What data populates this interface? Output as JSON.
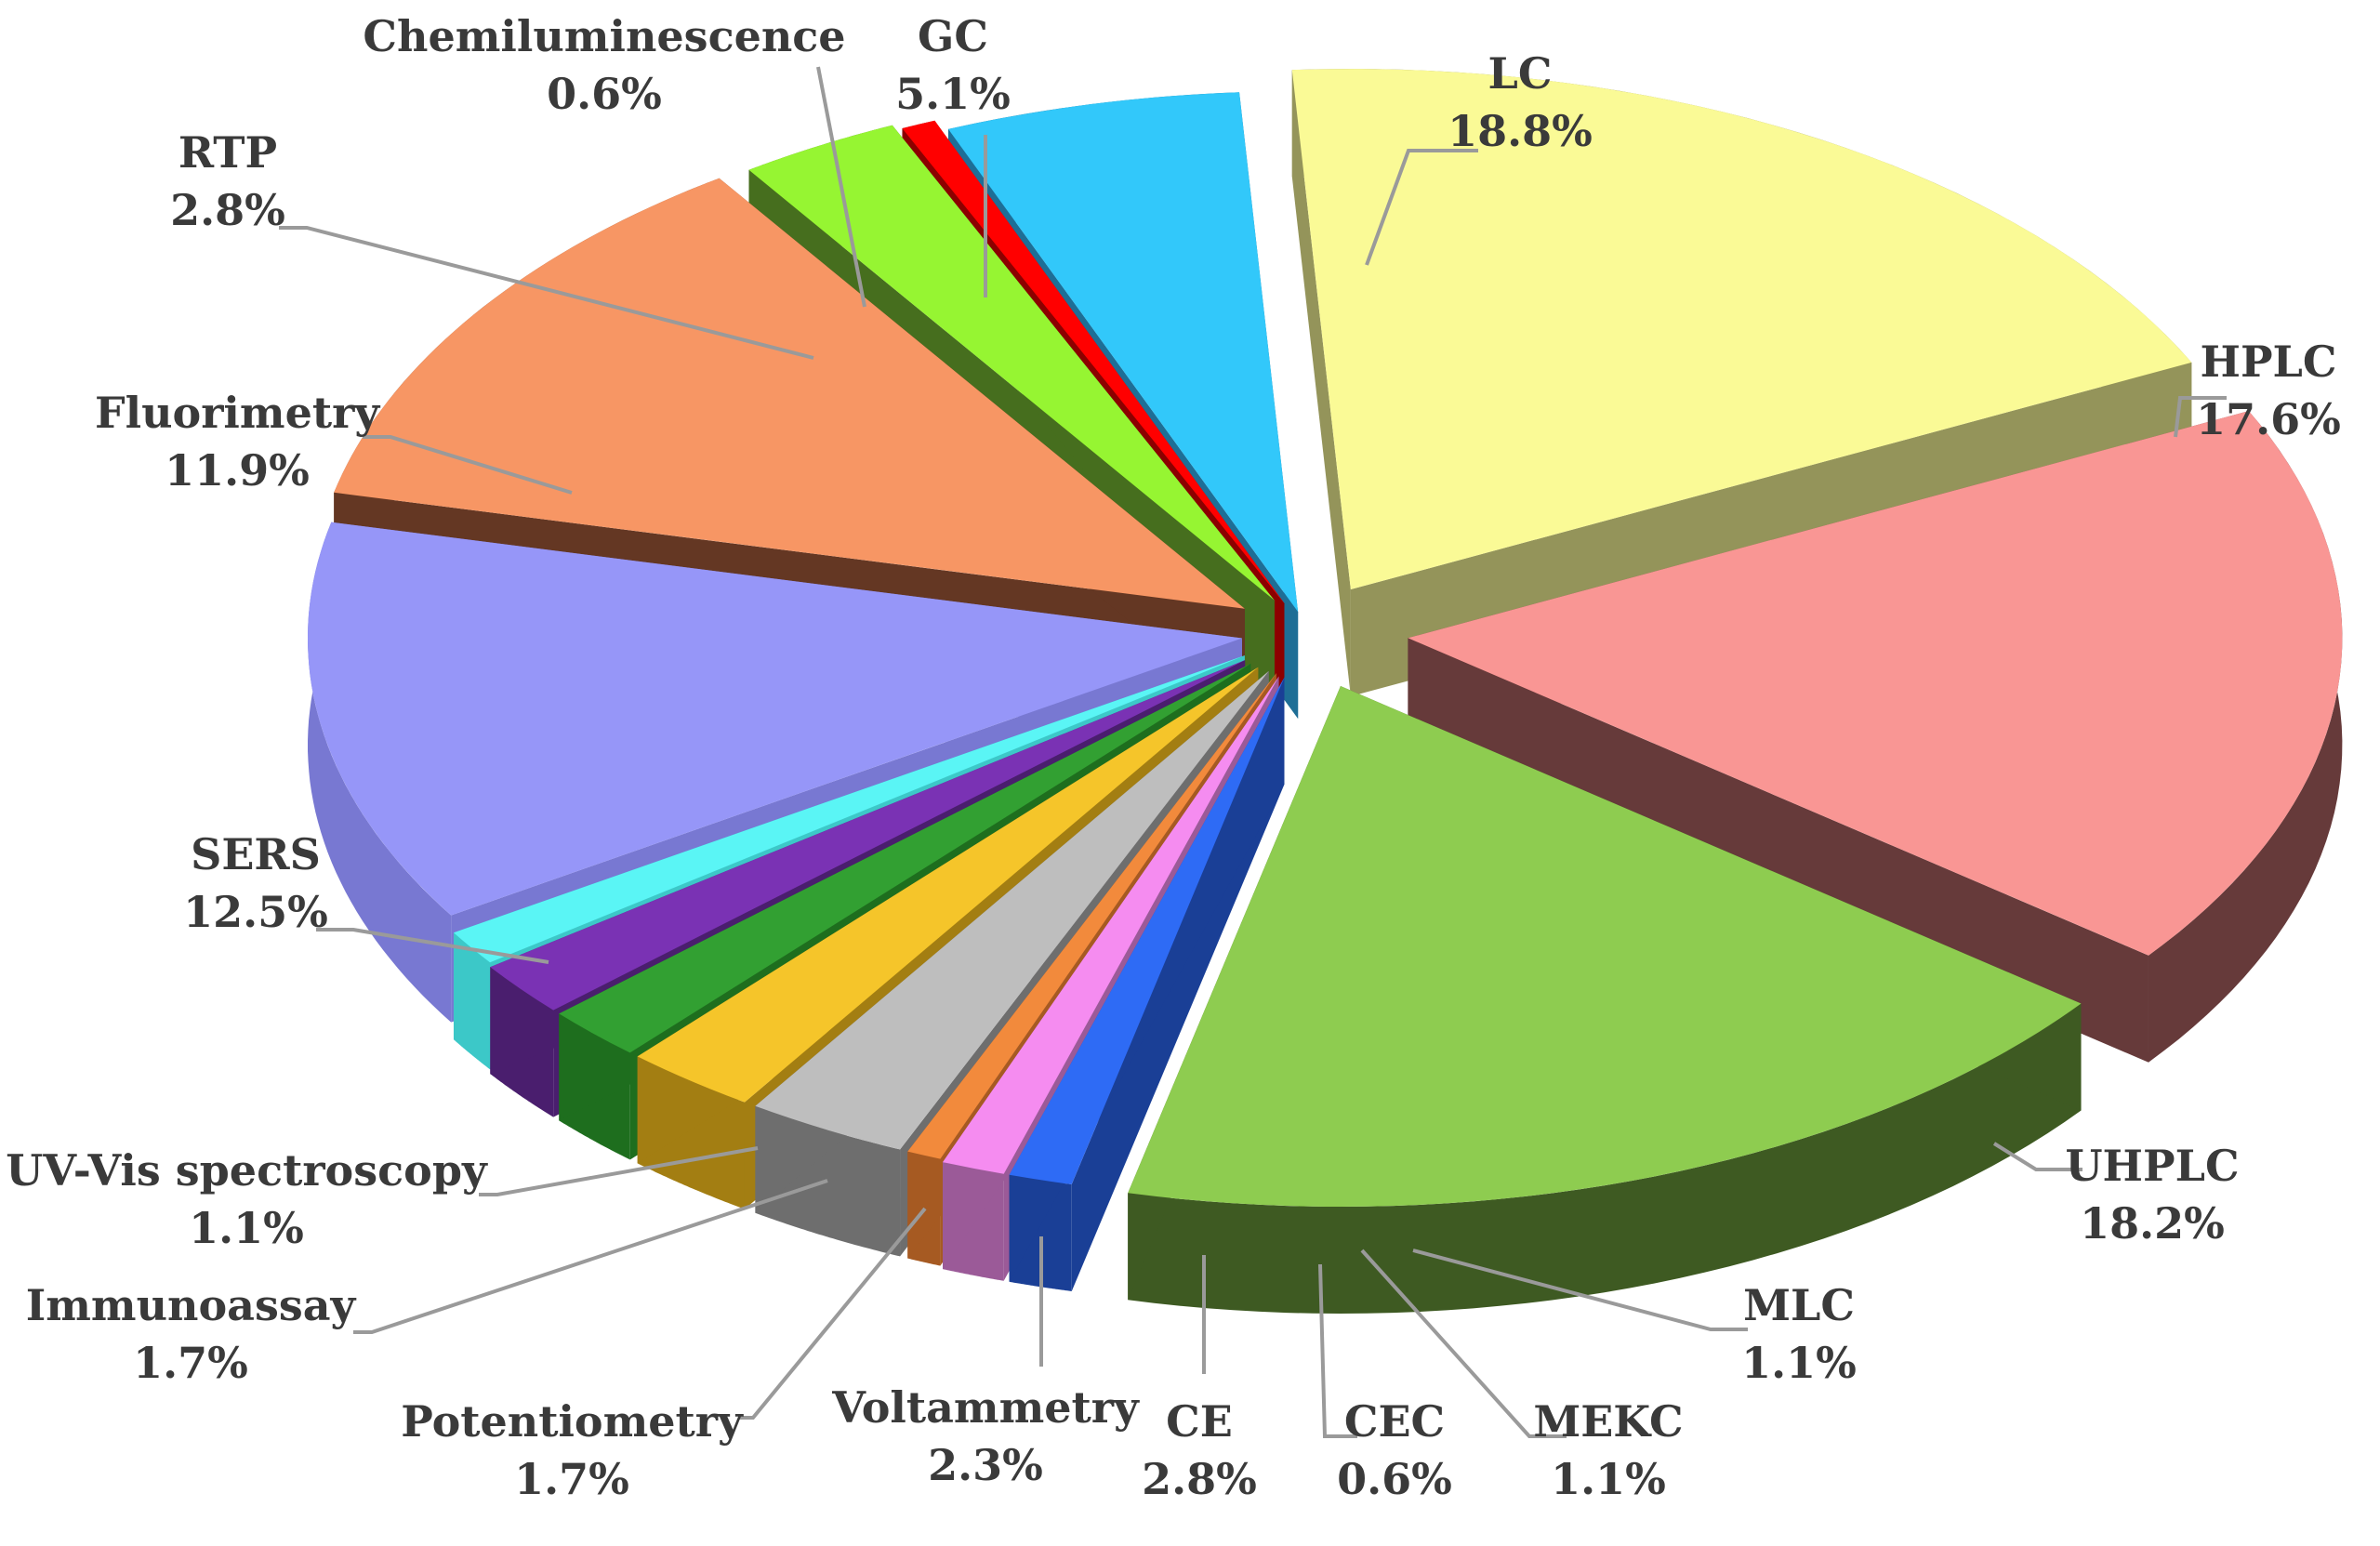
{
  "chart_data": {
    "type": "pie",
    "title": "",
    "legend": "none",
    "slices": [
      {
        "label": "LC",
        "value": 18.8,
        "value_label": "18.8%",
        "color": "#FAFA96",
        "side_color": "#94945A"
      },
      {
        "label": "HPLC",
        "value": 17.6,
        "value_label": "17.6%",
        "color": "#F99694",
        "side_color": "#663A3A"
      },
      {
        "label": "UHPLC",
        "value": 18.2,
        "value_label": "18.2%",
        "color": "#8ECC50",
        "side_color": "#3E5A22"
      },
      {
        "label": "MLC",
        "value": 1.1,
        "value_label": "1.1%",
        "color": "#2E6BF5",
        "side_color": "#1A3F96"
      },
      {
        "label": "MEKC",
        "value": 1.1,
        "value_label": "1.1%",
        "color": "#F58CF0",
        "side_color": "#9B5A98"
      },
      {
        "label": "CEC",
        "value": 0.6,
        "value_label": "0.6%",
        "color": "#F28A3C",
        "side_color": "#A65A22"
      },
      {
        "label": "CE",
        "value": 2.8,
        "value_label": "2.8%",
        "color": "#BEBEBE",
        "side_color": "#6E6E6E"
      },
      {
        "label": "Voltammetry",
        "value": 2.3,
        "value_label": "2.3%",
        "color": "#F5C52A",
        "side_color": "#A37E12"
      },
      {
        "label": "Potentiometry",
        "value": 1.7,
        "value_label": "1.7%",
        "color": "#32A032",
        "side_color": "#1E6E1E"
      },
      {
        "label": "Immunoassay",
        "value": 1.7,
        "value_label": "1.7%",
        "color": "#7A32B4",
        "side_color": "#4A1E6E"
      },
      {
        "label": "UV-Vis spectroscopy",
        "value": 1.1,
        "value_label": "1.1%",
        "color": "#5AF5F5",
        "side_color": "#3CC8C8"
      },
      {
        "label": "SERS",
        "value": 12.5,
        "value_label": "12.5%",
        "color": "#9696F8",
        "side_color": "#7878D2"
      },
      {
        "label": "Fluorimetry",
        "value": 11.9,
        "value_label": "11.9%",
        "color": "#F79664",
        "side_color": "#643723"
      },
      {
        "label": "RTP",
        "value": 2.8,
        "value_label": "2.8%",
        "color": "#96F532",
        "side_color": "#466E1E"
      },
      {
        "label": "Chemiluminescence",
        "value": 0.6,
        "value_label": "0.6%",
        "color": "#FF0000",
        "side_color": "#8C0000"
      },
      {
        "label": "GC",
        "value": 5.1,
        "value_label": "5.1%",
        "color": "#32C8FA",
        "side_color": "#1E6E96"
      }
    ]
  }
}
